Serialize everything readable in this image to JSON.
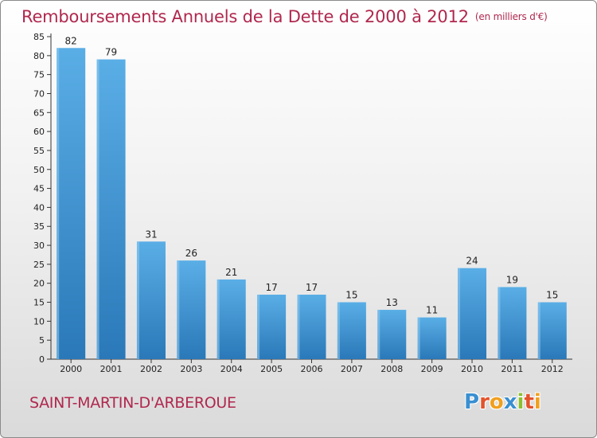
{
  "title": "Remboursements Annuels de la Dette de 2000 à 2012",
  "unit_note": "(en milliers d'€)",
  "commune": "SAINT-MARTIN-D'ARBEROUE",
  "logo": {
    "text": "Proxiti",
    "letters": [
      {
        "char": "P",
        "color": "#3a8fd0"
      },
      {
        "char": "r",
        "color": "#e3532c"
      },
      {
        "char": "o",
        "color": "#f0a01e"
      },
      {
        "char": "x",
        "color": "#3a8fd0"
      },
      {
        "char": "i",
        "color": "#8cbf2f"
      },
      {
        "char": "t",
        "color": "#e3532c"
      },
      {
        "char": "i",
        "color": "#f0a01e"
      }
    ]
  },
  "colors": {
    "title": "#b0284e",
    "bar_light": "#5aaee6",
    "bar_dark": "#2a78b8",
    "axis": "#333333",
    "grid": "#c8c8c8"
  },
  "chart_data": {
    "type": "bar",
    "categories": [
      "2000",
      "2001",
      "2002",
      "2003",
      "2004",
      "2005",
      "2006",
      "2007",
      "2008",
      "2009",
      "2010",
      "2011",
      "2012"
    ],
    "values": [
      82,
      79,
      31,
      26,
      21,
      17,
      17,
      15,
      13,
      11,
      24,
      19,
      15
    ],
    "title": "Remboursements Annuels de la Dette de 2000 à 2012",
    "xlabel": "",
    "ylabel": "",
    "ylim": [
      0,
      85
    ],
    "yticks": [
      0,
      5,
      10,
      15,
      20,
      25,
      30,
      35,
      40,
      45,
      50,
      55,
      60,
      65,
      70,
      75,
      80,
      85
    ],
    "grid": false,
    "data_labels": true
  }
}
